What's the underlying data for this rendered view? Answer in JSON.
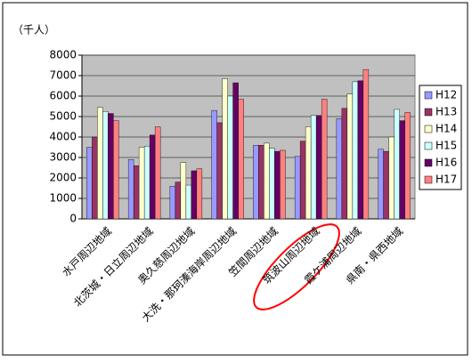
{
  "chart_data": {
    "type": "bar",
    "y_label": "（千人）",
    "categories": [
      "水戸周辺地域",
      "北茨城・日立周辺地域",
      "奥久慈周辺地域",
      "大洗・那珂湊海岸周辺地域",
      "笠間周辺地域",
      "筑波山周辺地域",
      "霞ケ浦周辺地域",
      "県南・県西地域"
    ],
    "series": [
      {
        "name": "H12",
        "color": "#9999ff",
        "values": [
          3500,
          2900,
          1600,
          5300,
          3600,
          3050,
          4900,
          3400
        ]
      },
      {
        "name": "H13",
        "color": "#993366",
        "values": [
          4000,
          2600,
          1800,
          4700,
          3600,
          3800,
          5400,
          3300
        ]
      },
      {
        "name": "H14",
        "color": "#ffffcc",
        "values": [
          5450,
          3500,
          2750,
          6850,
          3700,
          4500,
          6100,
          4000
        ]
      },
      {
        "name": "H15",
        "color": "#ccffff",
        "values": [
          5250,
          3550,
          1650,
          6000,
          3450,
          5050,
          6700,
          5350
        ]
      },
      {
        "name": "H16",
        "color": "#660066",
        "values": [
          5150,
          4100,
          2350,
          6650,
          3300,
          5050,
          6750,
          4800
        ]
      },
      {
        "name": "H17",
        "color": "#ff8080",
        "values": [
          4800,
          4500,
          2450,
          5850,
          3350,
          5850,
          7300,
          5200
        ]
      }
    ],
    "ylim": [
      0,
      8000
    ],
    "yticks": [
      0,
      1000,
      2000,
      3000,
      4000,
      5000,
      6000,
      7000,
      8000
    ],
    "grid": true,
    "legend": "right"
  }
}
